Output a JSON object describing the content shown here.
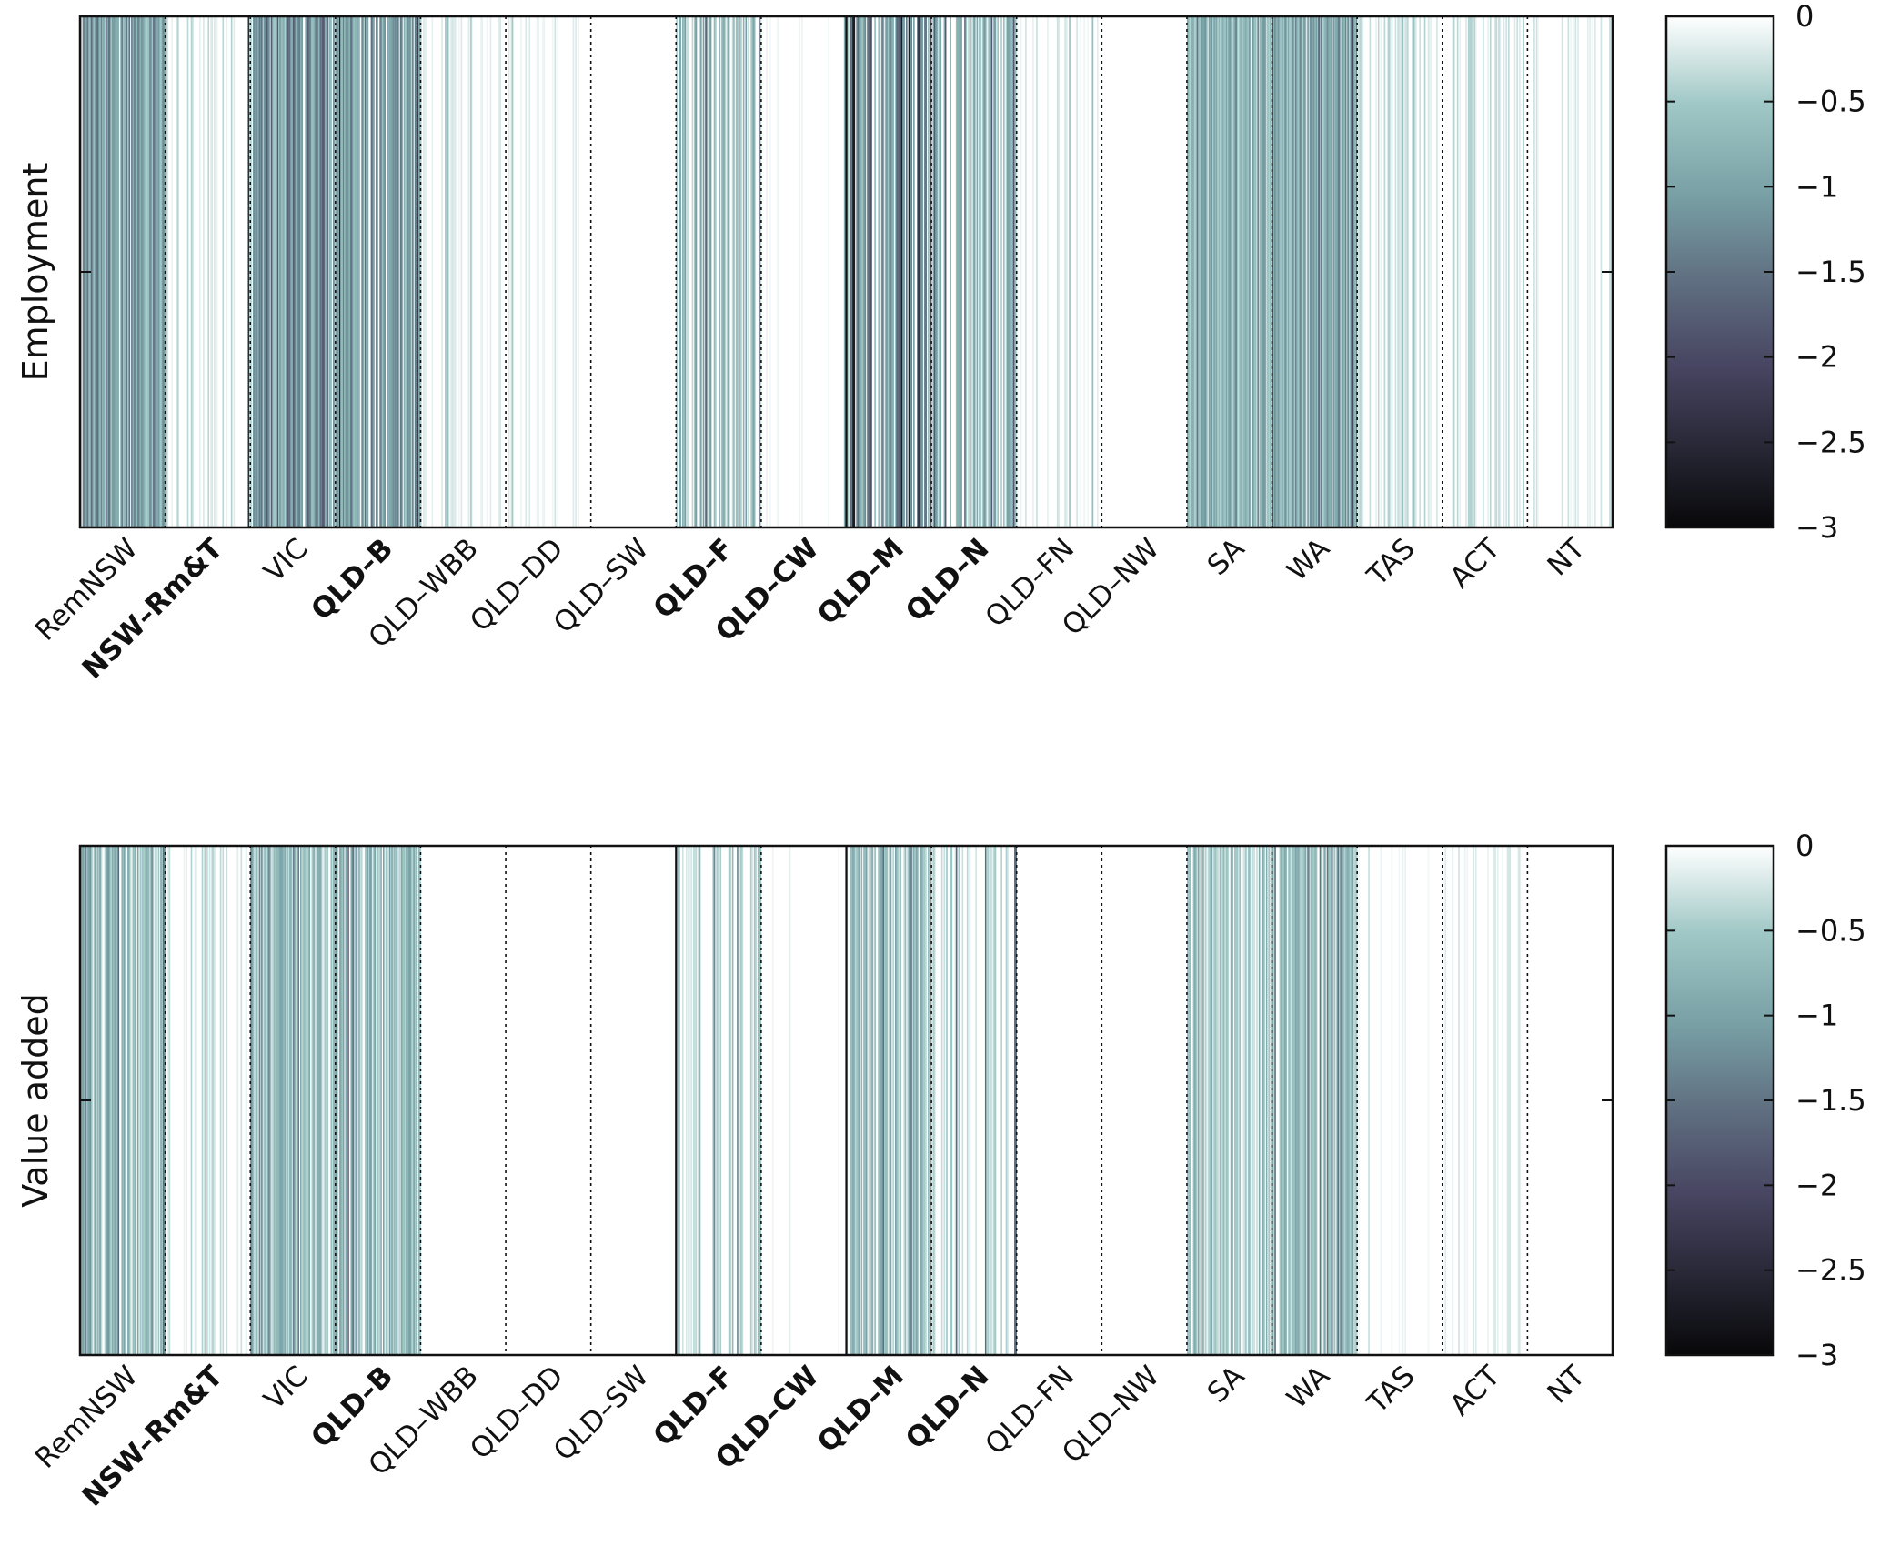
{
  "chart_data": [
    {
      "type": "heatmap",
      "ylabel": "Employment",
      "xlabel": "",
      "categories": [
        "RemNSW",
        "NSW-Rm&T",
        "VIC",
        "QLD-B",
        "QLD-WBB",
        "QLD-DD",
        "QLD-SW",
        "QLD-F",
        "QLD-CW",
        "QLD-M",
        "QLD-N",
        "QLD-FN",
        "QLD-NW",
        "SA",
        "WA",
        "TAS",
        "ACT",
        "NT"
      ],
      "bold_categories": [
        "NSW-Rm&T",
        "QLD-B",
        "QLD-F",
        "QLD-CW",
        "QLD-M",
        "QLD-N"
      ],
      "solid_separators_after": [
        "QLD-CW"
      ],
      "grid": false,
      "intensity": [
        {
          "region": "RemNSW",
          "mean_value": -1.2,
          "peak_value": -1.9,
          "coverage": 0.95
        },
        {
          "region": "NSW-Rm&T",
          "mean_value": -0.3,
          "peak_value": -2.8,
          "coverage": 0.35
        },
        {
          "region": "VIC",
          "mean_value": -1.1,
          "peak_value": -1.8,
          "coverage": 0.95
        },
        {
          "region": "QLD-B",
          "mean_value": -1.1,
          "peak_value": -2.6,
          "coverage": 0.9
        },
        {
          "region": "QLD-WBB",
          "mean_value": -0.2,
          "peak_value": -0.6,
          "coverage": 0.25
        },
        {
          "region": "QLD-DD",
          "mean_value": -0.2,
          "peak_value": -0.5,
          "coverage": 0.25
        },
        {
          "region": "QLD-SW",
          "mean_value": 0,
          "peak_value": 0,
          "coverage": 0.0
        },
        {
          "region": "QLD-F",
          "mean_value": -0.8,
          "peak_value": -2.0,
          "coverage": 0.6
        },
        {
          "region": "QLD-CW",
          "mean_value": -0.1,
          "peak_value": -0.9,
          "coverage": 0.05
        },
        {
          "region": "QLD-M",
          "mean_value": -1.2,
          "peak_value": -2.7,
          "coverage": 0.8
        },
        {
          "region": "QLD-N",
          "mean_value": -0.8,
          "peak_value": -1.8,
          "coverage": 0.6
        },
        {
          "region": "QLD-FN",
          "mean_value": -0.2,
          "peak_value": -0.6,
          "coverage": 0.3
        },
        {
          "region": "QLD-NW",
          "mean_value": 0,
          "peak_value": 0,
          "coverage": 0.0
        },
        {
          "region": "SA",
          "mean_value": -0.8,
          "peak_value": -1.5,
          "coverage": 0.95
        },
        {
          "region": "WA",
          "mean_value": -1.0,
          "peak_value": -2.0,
          "coverage": 0.95
        },
        {
          "region": "TAS",
          "mean_value": -0.3,
          "peak_value": -0.6,
          "coverage": 0.45
        },
        {
          "region": "ACT",
          "mean_value": -0.3,
          "peak_value": -0.7,
          "coverage": 0.35
        },
        {
          "region": "NT",
          "mean_value": -0.2,
          "peak_value": -0.5,
          "coverage": 0.3
        }
      ],
      "colorbar": {
        "min": -3,
        "max": 0,
        "ticks": [
          "0",
          "−0.5",
          "−1",
          "−1.5",
          "−2",
          "−2.5",
          "−3"
        ],
        "tick_values": [
          0,
          -0.5,
          -1,
          -1.5,
          -2,
          -2.5,
          -3
        ]
      }
    },
    {
      "type": "heatmap",
      "ylabel": "Value added",
      "xlabel": "",
      "categories": [
        "RemNSW",
        "NSW-Rm&T",
        "VIC",
        "QLD-B",
        "QLD-WBB",
        "QLD-DD",
        "QLD-SW",
        "QLD-F",
        "QLD-CW",
        "QLD-M",
        "QLD-N",
        "QLD-FN",
        "QLD-NW",
        "SA",
        "WA",
        "TAS",
        "ACT",
        "NT"
      ],
      "bold_categories": [
        "NSW-Rm&T",
        "QLD-B",
        "QLD-F",
        "QLD-CW",
        "QLD-M",
        "QLD-N"
      ],
      "solid_separators_after": [
        "QLD-SW",
        "QLD-CW"
      ],
      "grid": false,
      "intensity": [
        {
          "region": "RemNSW",
          "mean_value": -0.8,
          "peak_value": -1.6,
          "coverage": 0.9
        },
        {
          "region": "NSW-Rm&T",
          "mean_value": -0.3,
          "peak_value": -1.7,
          "coverage": 0.35
        },
        {
          "region": "VIC",
          "mean_value": -0.7,
          "peak_value": -1.4,
          "coverage": 0.9
        },
        {
          "region": "QLD-B",
          "mean_value": -0.8,
          "peak_value": -1.6,
          "coverage": 0.85
        },
        {
          "region": "QLD-WBB",
          "mean_value": 0,
          "peak_value": 0,
          "coverage": 0.0
        },
        {
          "region": "QLD-DD",
          "mean_value": 0,
          "peak_value": 0,
          "coverage": 0.0
        },
        {
          "region": "QLD-SW",
          "mean_value": 0,
          "peak_value": 0,
          "coverage": 0.0
        },
        {
          "region": "QLD-F",
          "mean_value": -0.5,
          "peak_value": -1.3,
          "coverage": 0.5
        },
        {
          "region": "QLD-CW",
          "mean_value": -0.1,
          "peak_value": -0.5,
          "coverage": 0.05
        },
        {
          "region": "QLD-M",
          "mean_value": -0.7,
          "peak_value": -1.6,
          "coverage": 0.7
        },
        {
          "region": "QLD-N",
          "mean_value": -0.4,
          "peak_value": -1.6,
          "coverage": 0.35
        },
        {
          "region": "QLD-FN",
          "mean_value": 0,
          "peak_value": 0,
          "coverage": 0.0
        },
        {
          "region": "QLD-NW",
          "mean_value": 0,
          "peak_value": 0,
          "coverage": 0.0
        },
        {
          "region": "SA",
          "mean_value": -0.5,
          "peak_value": -0.9,
          "coverage": 0.85
        },
        {
          "region": "WA",
          "mean_value": -0.7,
          "peak_value": -1.5,
          "coverage": 0.8
        },
        {
          "region": "TAS",
          "mean_value": -0.1,
          "peak_value": -0.3,
          "coverage": 0.15
        },
        {
          "region": "ACT",
          "mean_value": -0.2,
          "peak_value": -0.5,
          "coverage": 0.25
        },
        {
          "region": "NT",
          "mean_value": 0,
          "peak_value": 0,
          "coverage": 0.0
        }
      ],
      "colorbar": {
        "min": -3,
        "max": 0,
        "ticks": [
          "0",
          "−0.5",
          "−1",
          "−1.5",
          "−2",
          "−2.5",
          "−3"
        ],
        "tick_values": [
          0,
          -0.5,
          -1,
          -1.5,
          -2,
          -2.5,
          -3
        ]
      }
    }
  ]
}
